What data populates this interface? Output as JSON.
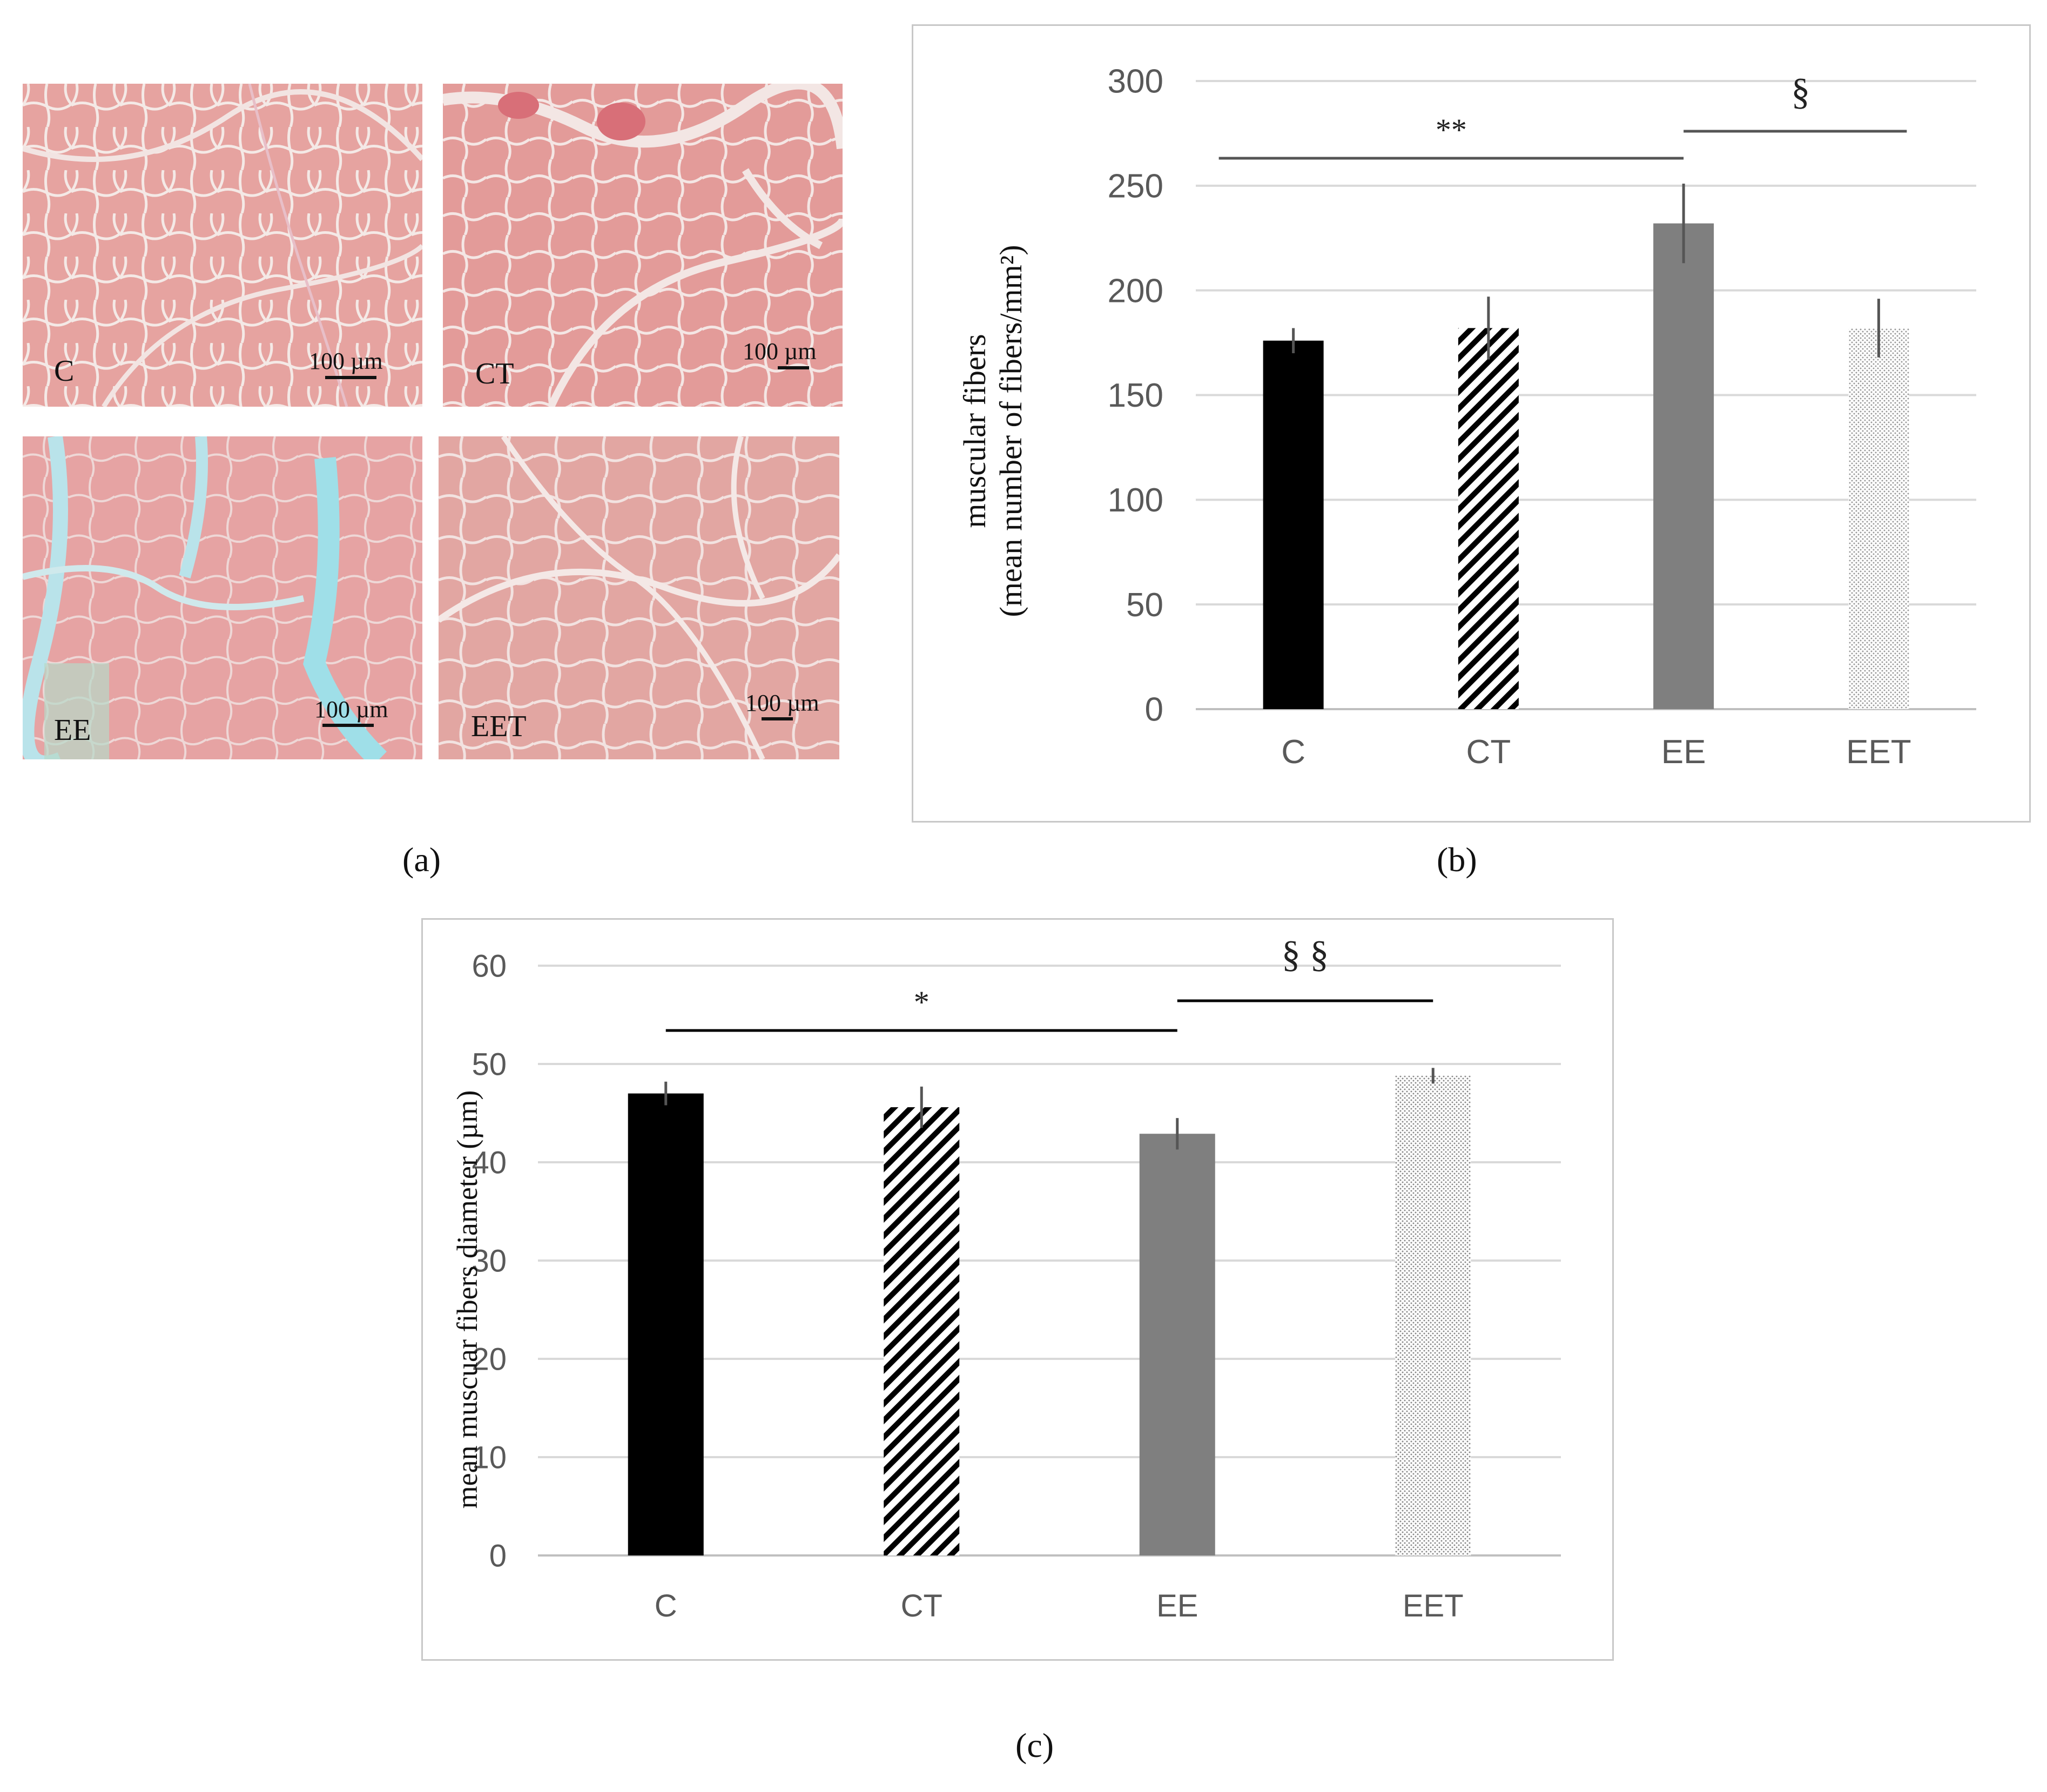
{
  "panel_a": {
    "images": [
      {
        "label": "C",
        "scale": "100 µm"
      },
      {
        "label": "CT",
        "scale": "100 µm"
      },
      {
        "label": "EE",
        "scale": "100 µm"
      },
      {
        "label": "EET",
        "scale": "100 µm"
      }
    ],
    "caption": "(a)"
  },
  "panel_b": {
    "caption": "(b)"
  },
  "panel_c": {
    "caption": "(c)"
  },
  "colors": {
    "C": "#000000",
    "CT": "hatch-diagonal-black",
    "EE": "#7f7f7f",
    "EET": "dotted-light-gray",
    "grid": "#d9d9d9",
    "axis_text": "#595959"
  },
  "chart_data": [
    {
      "type": "bar",
      "categories": [
        "C",
        "CT",
        "EE",
        "EET"
      ],
      "values": [
        176,
        182,
        232,
        182
      ],
      "errors": [
        6,
        15,
        19,
        14
      ],
      "ylabel_line1": "muscular fibers",
      "ylabel_line2": "(mean number of fibers/mm²)",
      "ylim": [
        0,
        300
      ],
      "yticks": [
        0,
        50,
        100,
        150,
        200,
        250,
        300
      ],
      "grid": true,
      "significance": [
        {
          "from": "C",
          "to": "EE",
          "label": "**"
        },
        {
          "from": "EE",
          "to": "EET",
          "label": "§"
        }
      ]
    },
    {
      "type": "bar",
      "categories": [
        "C",
        "CT",
        "EE",
        "EET"
      ],
      "values": [
        47,
        45.6,
        42.9,
        48.8
      ],
      "errors": [
        1.2,
        2.1,
        1.6,
        0.8
      ],
      "ylabel": "mean muscuar fibers diameter (µm)",
      "ylim": [
        0,
        60
      ],
      "yticks": [
        0,
        10,
        20,
        30,
        40,
        50,
        60
      ],
      "grid": true,
      "significance": [
        {
          "from": "C",
          "to": "EE",
          "label": "*"
        },
        {
          "from": "EE",
          "to": "EET",
          "label": "§ §"
        }
      ]
    }
  ]
}
